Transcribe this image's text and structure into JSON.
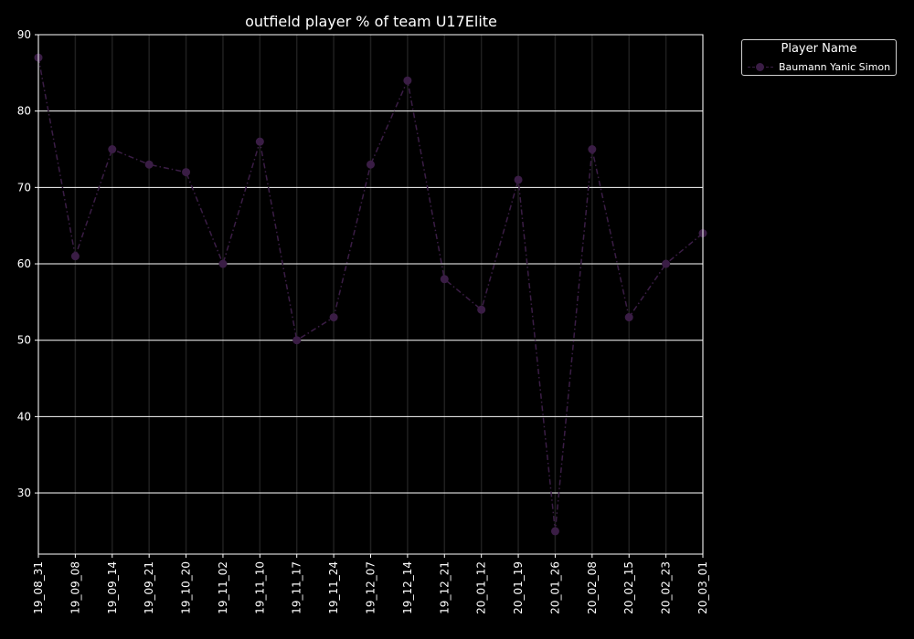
{
  "chart_data": {
    "type": "line",
    "title": "outfield player % of team U17Elite",
    "xlabel": "",
    "ylabel": "",
    "categories": [
      "19_08_31",
      "19_09_08",
      "19_09_14",
      "19_09_21",
      "19_10_20",
      "19_11_02",
      "19_11_10",
      "19_11_17",
      "19_11_24",
      "19_12_07",
      "19_12_14",
      "19_12_21",
      "20_01_12",
      "20_01_19",
      "20_01_26",
      "20_02_08",
      "20_02_15",
      "20_02_23",
      "20_03_01"
    ],
    "series": [
      {
        "name": "Baumann Yanic Simon",
        "color": "#3a1d45",
        "values": [
          87,
          61,
          75,
          73,
          72,
          60,
          76,
          50,
          53,
          73,
          84,
          58,
          54,
          71,
          25,
          75,
          53,
          60,
          64
        ]
      }
    ],
    "ylim": [
      22,
      90
    ],
    "yticks": [
      30,
      40,
      50,
      60,
      70,
      80,
      90
    ],
    "grid": "horizontal",
    "legend": {
      "title": "Player Name",
      "placement": "outside-top-right"
    }
  }
}
